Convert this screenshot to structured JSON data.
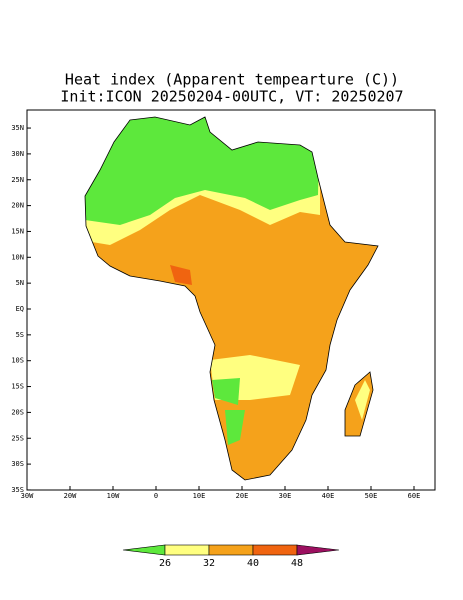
{
  "title": "Heat index (Apparent tempearture (C))",
  "subtitle": "Init:ICON 20250204-00UTC, VT: 20250207",
  "map": {
    "lon_ticks": [
      {
        "value": -30,
        "label": "30W"
      },
      {
        "value": -20,
        "label": "20W"
      },
      {
        "value": -10,
        "label": "10W"
      },
      0,
      {
        "value": 10,
        "label": "10E"
      },
      {
        "value": 20,
        "label": "20E"
      },
      {
        "value": 30,
        "label": "30E"
      },
      {
        "value": 40,
        "label": "40E"
      },
      {
        "value": 50,
        "label": "50E"
      },
      {
        "value": 60,
        "label": "60E"
      }
    ],
    "lat_ticks": [
      {
        "value": 35,
        "label": "35N"
      },
      {
        "value": 30,
        "label": "30N"
      },
      {
        "value": 25,
        "label": "25N"
      },
      {
        "value": 20,
        "label": "20N"
      },
      {
        "value": 15,
        "label": "15N"
      },
      {
        "value": 10,
        "label": "10N"
      },
      {
        "value": 5,
        "label": "5N"
      },
      {
        "value": 0,
        "label": "EQ"
      },
      {
        "value": -5,
        "label": "5S"
      },
      {
        "value": -10,
        "label": "10S"
      },
      {
        "value": -15,
        "label": "15S"
      },
      {
        "value": -20,
        "label": "20S"
      },
      {
        "value": -25,
        "label": "25S"
      },
      {
        "value": -30,
        "label": "30S"
      },
      {
        "value": -35,
        "label": "35S"
      }
    ]
  },
  "colorbar": {
    "levels": [
      26,
      32,
      40,
      48
    ],
    "colors": [
      "#5de83c",
      "#ffff80",
      "#f5a21b",
      "#f06410",
      "#9c1060"
    ]
  }
}
